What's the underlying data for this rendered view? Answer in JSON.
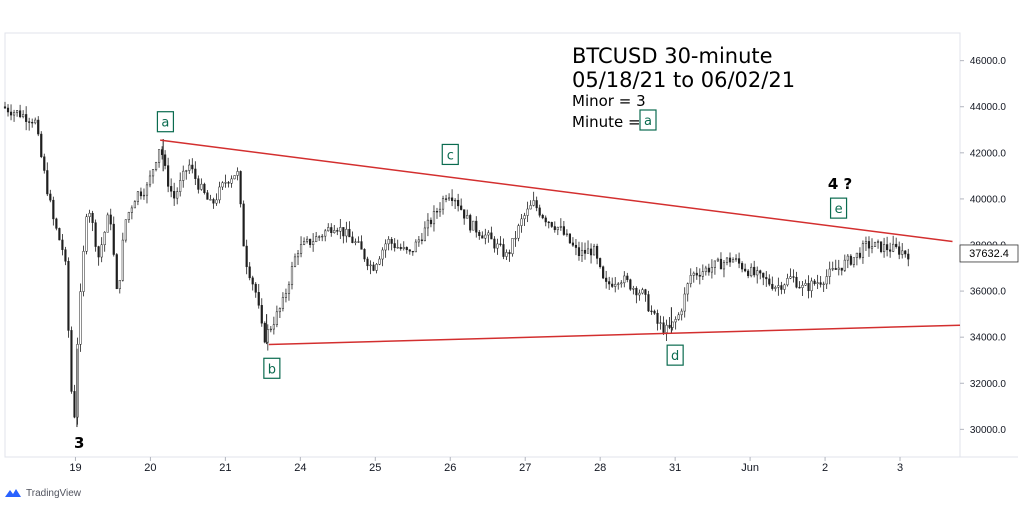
{
  "chart_data": {
    "type": "candlestick",
    "title": "BTCUSD 30-minute",
    "subtitle": "05/18/21 to 06/02/21",
    "annotations_text": [
      "Minor = 3",
      "Minute ="
    ],
    "minute_label": "a",
    "x_ticks": [
      {
        "label": "19",
        "day": 1
      },
      {
        "label": "20",
        "day": 2
      },
      {
        "label": "21",
        "day": 3
      },
      {
        "label": "24",
        "day": 4
      },
      {
        "label": "25",
        "day": 5
      },
      {
        "label": "26",
        "day": 6
      },
      {
        "label": "27",
        "day": 7
      },
      {
        "label": "28",
        "day": 8
      },
      {
        "label": "31",
        "day": 9
      },
      {
        "label": "Jun",
        "day": 10
      },
      {
        "label": "2",
        "day": 11
      },
      {
        "label": "3",
        "day": 12
      }
    ],
    "y_ticks": [
      30000,
      32000,
      34000,
      36000,
      38000,
      40000,
      42000,
      44000,
      46000
    ],
    "ylim": [
      28800,
      47200
    ],
    "xlim": [
      0.06,
      12.8
    ],
    "last_price": "37632.4",
    "price_path": [
      [
        0.06,
        44000
      ],
      [
        0.3,
        43700
      ],
      [
        0.5,
        43400
      ],
      [
        0.6,
        41500
      ],
      [
        0.75,
        39000
      ],
      [
        0.9,
        37500
      ],
      [
        0.98,
        32000
      ],
      [
        1.02,
        30100
      ],
      [
        1.07,
        34000
      ],
      [
        1.2,
        40000
      ],
      [
        1.35,
        37500
      ],
      [
        1.5,
        39500
      ],
      [
        1.6,
        35600
      ],
      [
        1.7,
        39000
      ],
      [
        1.85,
        40200
      ],
      [
        2.0,
        40500
      ],
      [
        2.17,
        42400
      ],
      [
        2.25,
        41000
      ],
      [
        2.35,
        40000
      ],
      [
        2.55,
        41500
      ],
      [
        2.7,
        40500
      ],
      [
        2.85,
        39700
      ],
      [
        3.05,
        40800
      ],
      [
        3.2,
        41200
      ],
      [
        3.3,
        37500
      ],
      [
        3.45,
        35900
      ],
      [
        3.55,
        33900
      ],
      [
        3.62,
        34300
      ],
      [
        3.8,
        35400
      ],
      [
        4.0,
        37800
      ],
      [
        4.3,
        38400
      ],
      [
        4.5,
        38900
      ],
      [
        4.8,
        38000
      ],
      [
        5.0,
        37000
      ],
      [
        5.2,
        38200
      ],
      [
        5.5,
        37600
      ],
      [
        5.85,
        39400
      ],
      [
        6.0,
        40300
      ],
      [
        6.1,
        40100
      ],
      [
        6.3,
        38900
      ],
      [
        6.55,
        38300
      ],
      [
        6.8,
        37500
      ],
      [
        7.0,
        39100
      ],
      [
        7.15,
        39800
      ],
      [
        7.3,
        39200
      ],
      [
        7.5,
        38700
      ],
      [
        7.75,
        37600
      ],
      [
        7.95,
        37800
      ],
      [
        8.1,
        36200
      ],
      [
        8.3,
        36600
      ],
      [
        8.6,
        35900
      ],
      [
        8.8,
        34600
      ],
      [
        8.95,
        34250
      ],
      [
        9.1,
        35000
      ],
      [
        9.25,
        36700
      ],
      [
        9.5,
        37000
      ],
      [
        9.8,
        37400
      ],
      [
        10.1,
        36700
      ],
      [
        10.4,
        36200
      ],
      [
        10.6,
        36600
      ],
      [
        10.75,
        36100
      ],
      [
        11.0,
        36500
      ],
      [
        11.3,
        37200
      ],
      [
        11.45,
        37500
      ],
      [
        11.6,
        38000
      ],
      [
        11.8,
        37900
      ],
      [
        12.0,
        37800
      ],
      [
        12.15,
        37632
      ]
    ],
    "candle_count": 300,
    "trendlines": [
      {
        "name": "upper",
        "from": [
          2.13,
          42550
        ],
        "to": [
          12.7,
          38150
        ],
        "color": "#d32f2f"
      },
      {
        "name": "lower",
        "from": [
          3.58,
          33680
        ],
        "to": [
          12.8,
          34520
        ],
        "color": "#d32f2f"
      }
    ],
    "wave_labels": [
      {
        "label": "a",
        "day": 2.2,
        "price": 43350,
        "boxed": true
      },
      {
        "label": "b",
        "day": 3.62,
        "price": 32650,
        "boxed": true
      },
      {
        "label": "c",
        "day": 6.0,
        "price": 41930,
        "boxed": true
      },
      {
        "label": "d",
        "day": 9.0,
        "price": 33220,
        "boxed": true
      },
      {
        "label": "e",
        "day": 11.18,
        "price": 39600,
        "boxed": true
      },
      {
        "label": "4 ?",
        "day": 11.2,
        "price": 40650,
        "boxed": false
      },
      {
        "label": "3",
        "day": 1.05,
        "price": 29400,
        "boxed": false
      }
    ],
    "colors": {
      "up": "#1f1f1f",
      "down": "#1f1f1f",
      "trendline": "#d32f2f",
      "wave_box": "#0a6b4f",
      "grid": "#f0f3fa"
    },
    "grid": false
  },
  "branding": {
    "label": "TradingView"
  }
}
